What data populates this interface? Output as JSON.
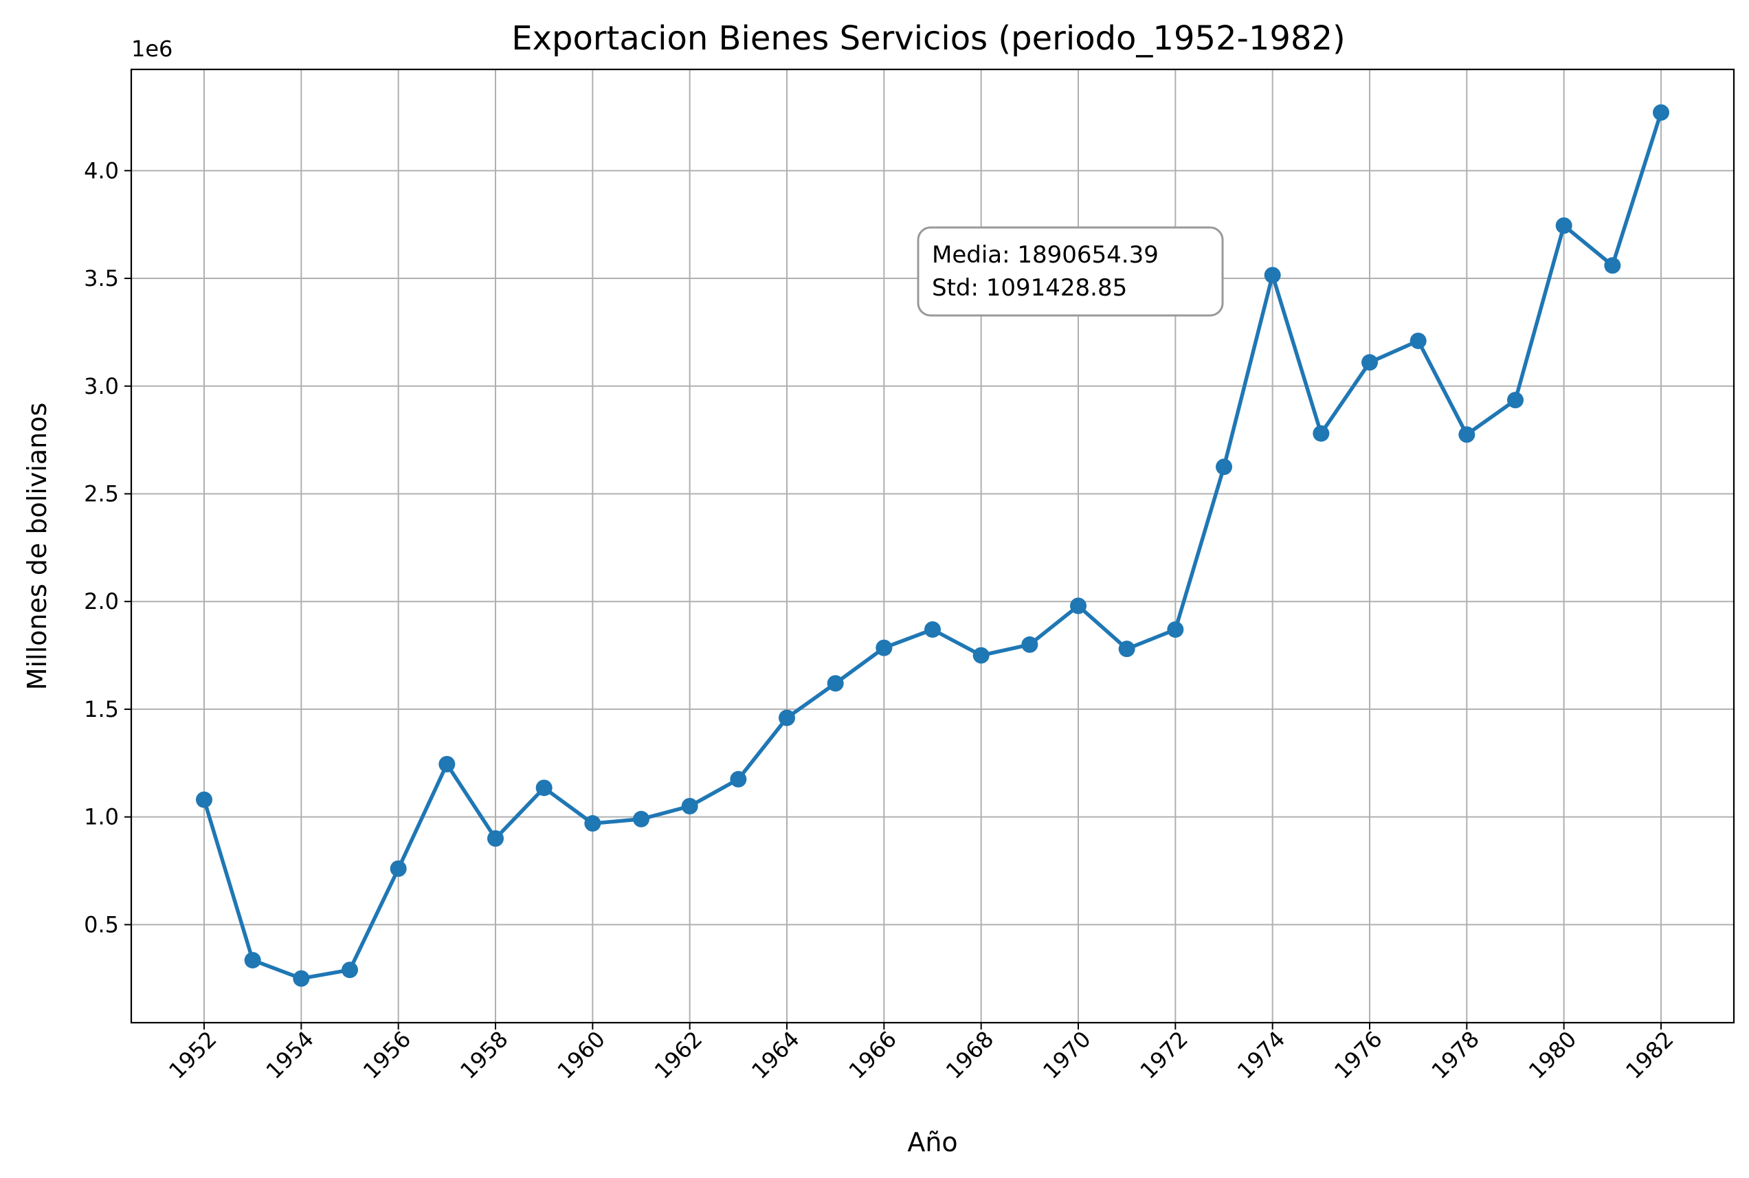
{
  "chart_data": {
    "type": "line",
    "title": "Exportacion Bienes Servicios (periodo_1952-1982)",
    "xlabel": "Año",
    "ylabel": "Millones de bolivianos",
    "y_offset_label": "1e6",
    "x": [
      1952,
      1953,
      1954,
      1955,
      1956,
      1957,
      1958,
      1959,
      1960,
      1961,
      1962,
      1963,
      1964,
      1965,
      1966,
      1967,
      1968,
      1969,
      1970,
      1971,
      1972,
      1973,
      1974,
      1975,
      1976,
      1977,
      1978,
      1979,
      1980,
      1981,
      1982
    ],
    "values": [
      1080000,
      335000,
      250000,
      290000,
      760000,
      1245000,
      900000,
      1135000,
      970000,
      990000,
      1050000,
      1175000,
      1460000,
      1620000,
      1785000,
      1870000,
      1750000,
      1800000,
      1980000,
      1780000,
      1870000,
      2625000,
      3515000,
      2780000,
      3110000,
      3210000,
      2775000,
      2935000,
      3745000,
      3560000,
      4270000
    ],
    "xticks": [
      1952,
      1954,
      1956,
      1958,
      1960,
      1962,
      1964,
      1966,
      1968,
      1970,
      1972,
      1974,
      1976,
      1978,
      1980,
      1982
    ],
    "yticks": [
      0.5,
      1.0,
      1.5,
      2.0,
      2.5,
      3.0,
      3.5,
      4.0
    ],
    "ytick_labels": [
      "0.5",
      "1.0",
      "1.5",
      "2.0",
      "2.5",
      "3.0",
      "3.5",
      "4.0"
    ],
    "xlim": [
      1950.5,
      1983.5
    ],
    "ylim": [
      45000,
      4470000
    ],
    "grid": true,
    "color": "#1f77b4",
    "annotation": {
      "line1": "Media: 1890654.39",
      "line2": "Std: 1091428.85"
    }
  }
}
